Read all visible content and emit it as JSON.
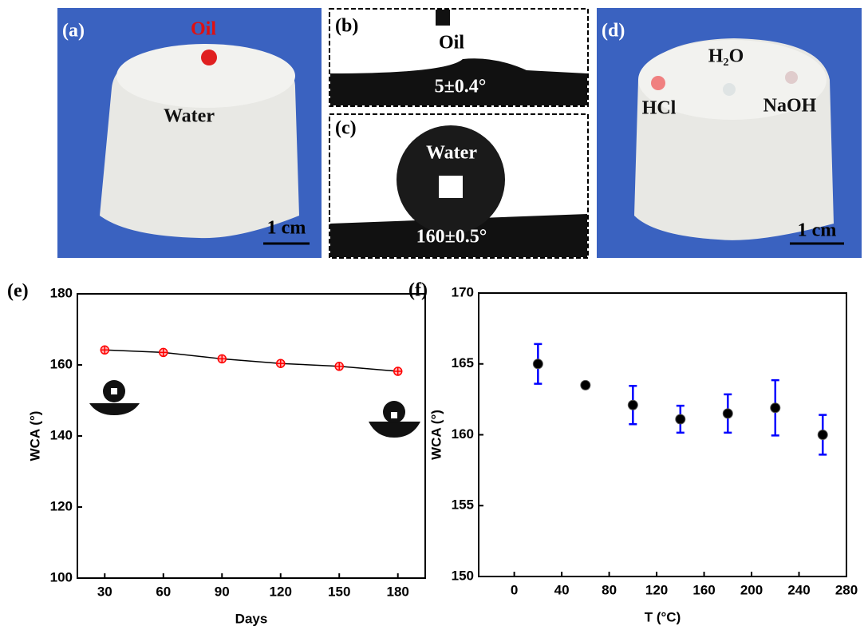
{
  "photos": {
    "a": {
      "label": "(a)",
      "oil": "Oil",
      "water": "Water",
      "scale": "1 cm"
    },
    "b": {
      "label": "(b)",
      "oil": "Oil",
      "angle": "5±0.4°"
    },
    "c": {
      "label": "(c)",
      "water": "Water",
      "angle": "160±0.5°"
    },
    "d": {
      "label": "(d)",
      "h2o": "H₂O",
      "hcl": "HCl",
      "naoh": "NaOH",
      "scale": "1 cm"
    }
  },
  "chart_data": [
    {
      "type": "line",
      "panel": "(e)",
      "x_label": "Days",
      "y_label": "WCA (°)",
      "x": [
        30,
        60,
        90,
        120,
        150,
        180
      ],
      "y": [
        164.2,
        163.5,
        161.7,
        160.4,
        159.6,
        158.2
      ],
      "color": "#ff0000",
      "line_color": "#000000",
      "xlim": [
        16,
        194
      ],
      "ylim": [
        100,
        180
      ],
      "xticks": [
        30,
        60,
        90,
        120,
        150,
        180
      ],
      "yticks": [
        100,
        120,
        140,
        160,
        180
      ]
    },
    {
      "type": "scatter",
      "panel": "(f)",
      "x_label": "T (°C)",
      "y_label": "WCA (°)",
      "x": [
        20,
        60,
        100,
        140,
        180,
        220,
        260
      ],
      "y": [
        165.0,
        163.5,
        162.1,
        161.1,
        161.5,
        161.9,
        160.0
      ],
      "errors": [
        1.4,
        0.1,
        1.35,
        0.95,
        1.35,
        1.95,
        1.4
      ],
      "color": "#000000",
      "error_color": "#0000ff",
      "xlim": [
        -30,
        280
      ],
      "ylim": [
        150,
        170
      ],
      "xticks": [
        0,
        40,
        80,
        120,
        160,
        200,
        240,
        280
      ],
      "yticks": [
        150,
        155,
        160,
        165,
        170
      ]
    }
  ]
}
